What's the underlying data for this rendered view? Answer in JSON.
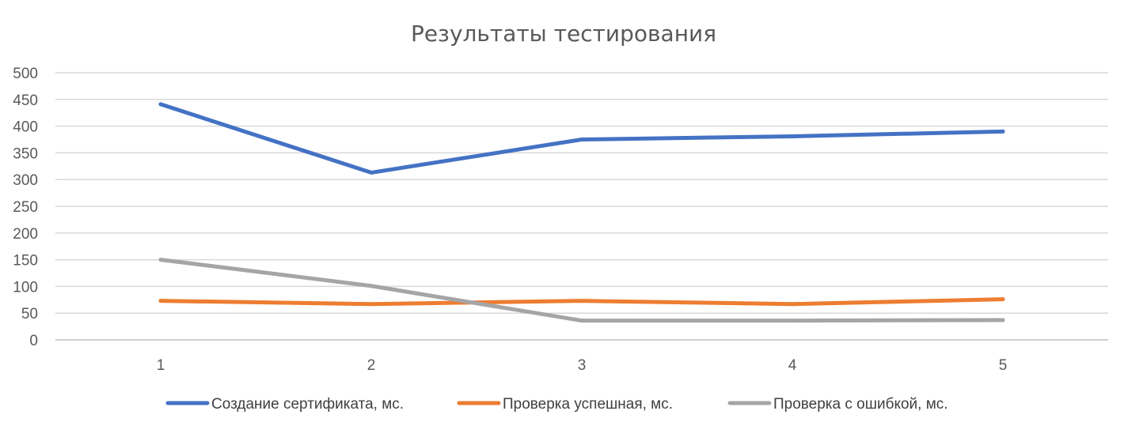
{
  "chart_data": {
    "type": "line",
    "title": "Результаты тестирования",
    "xlabel": "",
    "ylabel": "",
    "categories": [
      "1",
      "2",
      "3",
      "4",
      "5"
    ],
    "ylim": [
      0,
      500
    ],
    "yticks": [
      0,
      50,
      100,
      150,
      200,
      250,
      300,
      350,
      400,
      450,
      500
    ],
    "grid": true,
    "legend_position": "bottom",
    "series": [
      {
        "name": "Создание сертификата, мс.",
        "color": "#4472C4",
        "values": [
          441,
          313,
          375,
          381,
          390
        ]
      },
      {
        "name": "Проверка успешная, мс.",
        "color": "#ED7D31",
        "values": [
          73,
          67,
          73,
          67,
          76
        ]
      },
      {
        "name": "Проверка с ошибкой, мс.",
        "color": "#A5A5A5",
        "values": [
          150,
          101,
          36,
          36,
          37
        ]
      }
    ]
  }
}
